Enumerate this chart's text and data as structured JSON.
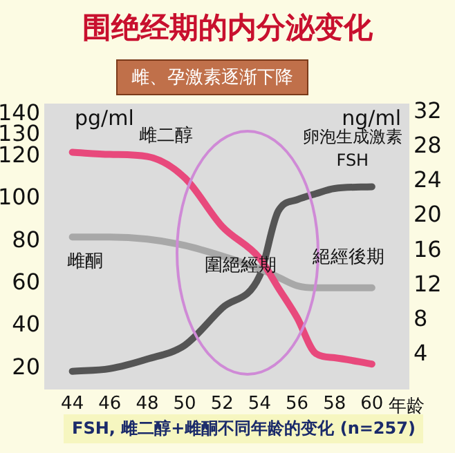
{
  "chart_data": {
    "type": "line",
    "title": "围绝经期的内分泌变化",
    "subtitle": "雌、孕激素逐渐下降",
    "xlabel": "年龄",
    "ylabel": "pg/ml",
    "y2label": "ng/ml",
    "x": [
      44,
      46,
      48,
      50,
      52,
      54,
      55,
      56,
      57,
      58,
      60
    ],
    "xlim": [
      42.5,
      62
    ],
    "xticks": [
      44,
      46,
      48,
      50,
      52,
      54,
      56,
      58,
      60
    ],
    "ylim": [
      10,
      145
    ],
    "yticks": [
      20,
      40,
      60,
      80,
      100,
      120,
      130,
      140
    ],
    "y2lim": [
      0,
      33
    ],
    "y2ticks": [
      4,
      8,
      12,
      16,
      20,
      24,
      28,
      32
    ],
    "series": [
      {
        "name": "雌二醇",
        "color": "#e8497c",
        "values": [
          122,
          121,
          120,
          110,
          87,
          72,
          58,
          44,
          27,
          25,
          22
        ]
      },
      {
        "name": "雌酮",
        "color": "#a8a8a8",
        "values": [
          82,
          82,
          81,
          78,
          73,
          67,
          63,
          59,
          58,
          58,
          58
        ]
      },
      {
        "name": "卵泡生成激素 FSH",
        "color": "#555555",
        "axis": "y2",
        "values": [
          2.1,
          2.4,
          3.5,
          5.1,
          9.4,
          13.1,
          20.6,
          21.9,
          22.6,
          23.2,
          23.4
        ]
      }
    ],
    "annotations": [
      "圍絕經期",
      "絕經後期",
      "FSH, 雌二醇+雌酮不同年龄的变化 (n=257)"
    ],
    "grid": false,
    "legend": false,
    "marker": "none",
    "line_style": "solid"
  }
}
